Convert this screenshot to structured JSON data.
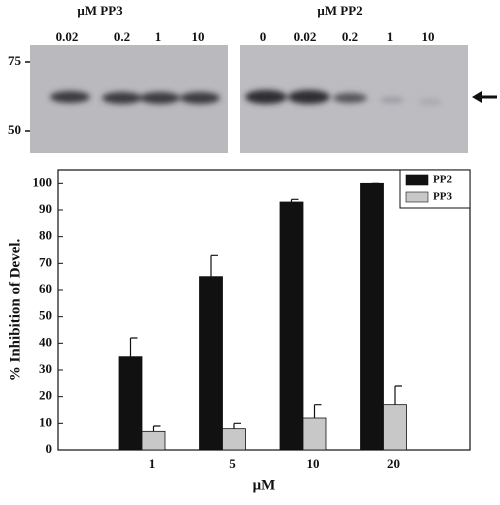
{
  "blot": {
    "left": {
      "title": "μM PP3",
      "lanes": [
        "0.02",
        "0.2",
        "1",
        "10"
      ]
    },
    "right": {
      "title": "μM PP2",
      "lanes": [
        "0",
        "0.02",
        "0.2",
        "1",
        "10"
      ]
    },
    "markers": [
      "75",
      "50"
    ]
  },
  "chart_data": {
    "type": "bar",
    "xlabel": "μM",
    "ylabel": "% Inhibition of Devel.",
    "categories": [
      "1",
      "5",
      "10",
      "20"
    ],
    "series": [
      {
        "name": "PP2",
        "color": "#111111",
        "values": [
          35,
          65,
          93,
          100
        ],
        "errors": [
          7,
          8,
          1,
          0
        ]
      },
      {
        "name": "PP3",
        "color": "#c8c8c8",
        "values": [
          7,
          8,
          12,
          17
        ],
        "errors": [
          2,
          2,
          5,
          7
        ]
      }
    ],
    "ylim": [
      0,
      105
    ],
    "yticks": [
      0,
      10,
      20,
      30,
      40,
      50,
      60,
      70,
      80,
      90,
      100
    ],
    "legend": "upper right"
  }
}
